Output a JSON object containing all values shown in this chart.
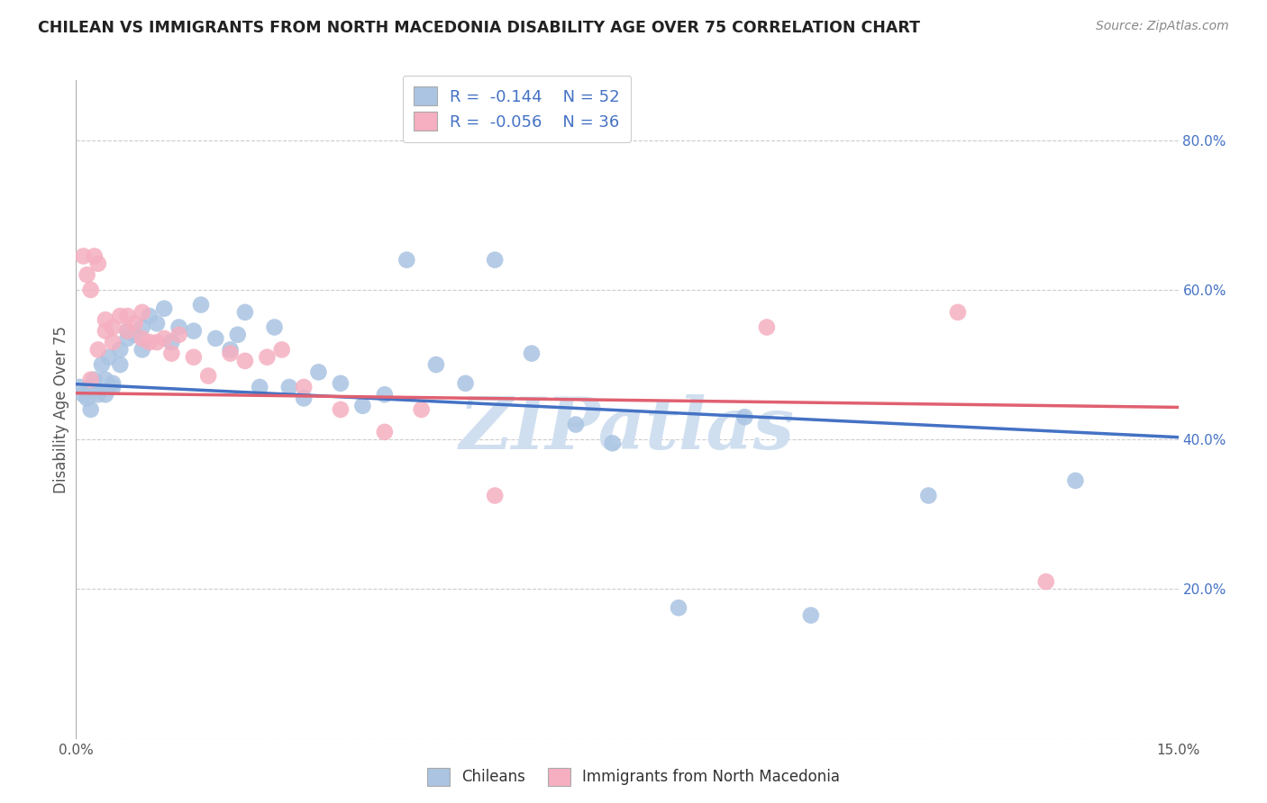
{
  "title": "CHILEAN VS IMMIGRANTS FROM NORTH MACEDONIA DISABILITY AGE OVER 75 CORRELATION CHART",
  "source": "Source: ZipAtlas.com",
  "ylabel": "Disability Age Over 75",
  "xlim": [
    0.0,
    0.15
  ],
  "ylim": [
    0.0,
    0.88
  ],
  "xticks": [
    0.0,
    0.03,
    0.06,
    0.09,
    0.12,
    0.15
  ],
  "yticks": [
    0.0,
    0.2,
    0.4,
    0.6,
    0.8
  ],
  "legend_R_blue": "-0.144",
  "legend_N_blue": "52",
  "legend_R_pink": "-0.056",
  "legend_N_pink": "36",
  "blue_scatter_color": "#aac4e2",
  "pink_scatter_color": "#f5afc0",
  "blue_line_color": "#4472c4",
  "pink_line_color": "#e06070",
  "grid_color": "#cccccc",
  "title_color": "#222222",
  "source_color": "#888888",
  "ylabel_color": "#555555",
  "right_ytick_color": "#4472c4",
  "watermark_text": "ZIPatlas",
  "watermark_color": "#d0dff0",
  "chileans_x": [
    0.0005,
    0.001,
    0.0015,
    0.002,
    0.002,
    0.0025,
    0.003,
    0.003,
    0.0035,
    0.004,
    0.004,
    0.0045,
    0.005,
    0.005,
    0.006,
    0.006,
    0.007,
    0.007,
    0.008,
    0.009,
    0.009,
    0.01,
    0.011,
    0.012,
    0.013,
    0.014,
    0.016,
    0.017,
    0.019,
    0.021,
    0.022,
    0.023,
    0.025,
    0.027,
    0.029,
    0.031,
    0.033,
    0.036,
    0.039,
    0.042,
    0.045,
    0.049,
    0.053,
    0.057,
    0.062,
    0.068,
    0.073,
    0.082,
    0.091,
    0.1,
    0.116,
    0.136
  ],
  "chileans_y": [
    0.47,
    0.46,
    0.455,
    0.47,
    0.44,
    0.48,
    0.465,
    0.46,
    0.5,
    0.46,
    0.48,
    0.51,
    0.475,
    0.47,
    0.52,
    0.5,
    0.535,
    0.545,
    0.54,
    0.52,
    0.55,
    0.565,
    0.555,
    0.575,
    0.53,
    0.55,
    0.545,
    0.58,
    0.535,
    0.52,
    0.54,
    0.57,
    0.47,
    0.55,
    0.47,
    0.455,
    0.49,
    0.475,
    0.445,
    0.46,
    0.64,
    0.5,
    0.475,
    0.64,
    0.515,
    0.42,
    0.395,
    0.175,
    0.43,
    0.165,
    0.325,
    0.345
  ],
  "immigrants_x": [
    0.001,
    0.0015,
    0.002,
    0.0025,
    0.003,
    0.004,
    0.004,
    0.005,
    0.005,
    0.006,
    0.007,
    0.007,
    0.008,
    0.009,
    0.009,
    0.01,
    0.011,
    0.012,
    0.013,
    0.014,
    0.016,
    0.018,
    0.021,
    0.023,
    0.026,
    0.028,
    0.031,
    0.036,
    0.042,
    0.047,
    0.057,
    0.094,
    0.12,
    0.132,
    0.002,
    0.003
  ],
  "immigrants_y": [
    0.645,
    0.62,
    0.6,
    0.645,
    0.635,
    0.545,
    0.56,
    0.55,
    0.53,
    0.565,
    0.545,
    0.565,
    0.555,
    0.535,
    0.57,
    0.53,
    0.53,
    0.535,
    0.515,
    0.54,
    0.51,
    0.485,
    0.515,
    0.505,
    0.51,
    0.52,
    0.47,
    0.44,
    0.41,
    0.44,
    0.325,
    0.55,
    0.57,
    0.21,
    0.48,
    0.52
  ],
  "blue_trend_x": [
    0.0,
    0.15
  ],
  "blue_trend_y": [
    0.474,
    0.403
  ],
  "pink_trend_x": [
    0.0,
    0.15
  ],
  "pink_trend_y": [
    0.462,
    0.443
  ]
}
